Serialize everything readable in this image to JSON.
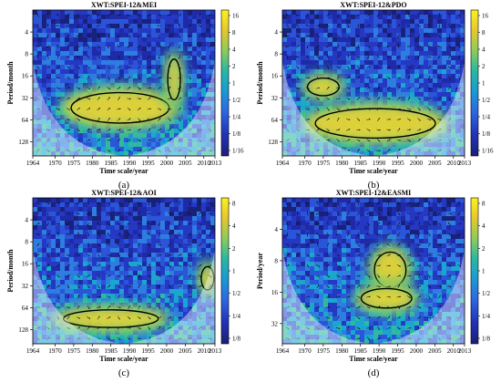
{
  "chart_data": [
    {
      "type": "heatmap",
      "panel_letter": "(a)",
      "title": "XWT:SPEI-12&MEI",
      "xlabel": "Time scale/year",
      "ylabel": "Period/month",
      "x_ticks": [
        "1964",
        "1970",
        "1975",
        "1980",
        "1985",
        "1990",
        "1995",
        "2000",
        "2005",
        "2010",
        "2013"
      ],
      "y_ticks": [
        "4",
        "8",
        "16",
        "32",
        "64",
        "128"
      ],
      "colorbar_ticks": [
        "16",
        "8",
        "4",
        "2",
        "1",
        "1/2",
        "1/4",
        "1/8",
        "1/16"
      ],
      "xlim": [
        1964,
        2013
      ],
      "ylim": [
        2,
        200
      ],
      "y_scale": "log2",
      "colors": {
        "low": "#18227a",
        "high": "#fbe22b"
      },
      "high_power_regions": [
        {
          "x": [
            1972,
            2003
          ],
          "period": [
            24,
            80
          ]
        },
        {
          "x": [
            2000,
            2004
          ],
          "period": [
            8,
            40
          ]
        }
      ]
    },
    {
      "type": "heatmap",
      "panel_letter": "(b)",
      "title": "XWT:SPEI-12&PDO",
      "xlabel": "Time scale/year",
      "ylabel": "Period/month",
      "x_ticks": [
        "1964",
        "1970",
        "1975",
        "1980",
        "1985",
        "1990",
        "1995",
        "2000",
        "2005",
        "2010",
        "2013"
      ],
      "y_ticks": [
        "4",
        "8",
        "16",
        "32",
        "64",
        "128"
      ],
      "colorbar_ticks": [
        "16",
        "8",
        "4",
        "2",
        "1",
        "1/2",
        "1/4",
        "1/8",
        "1/16"
      ],
      "xlim": [
        1964,
        2013
      ],
      "ylim": [
        2,
        200
      ],
      "y_scale": "log2",
      "colors": {
        "low": "#18227a",
        "high": "#fbe22b"
      },
      "high_power_regions": [
        {
          "x": [
            1970,
            2008
          ],
          "period": [
            40,
            128
          ]
        },
        {
          "x": [
            1970,
            1980
          ],
          "period": [
            16,
            32
          ]
        }
      ]
    },
    {
      "type": "heatmap",
      "panel_letter": "(c)",
      "title": "XWT:SPEI-12&AOI",
      "xlabel": "Time scale/year",
      "ylabel": "Period/month",
      "x_ticks": [
        "1964",
        "1970",
        "1975",
        "1980",
        "1985",
        "1990",
        "1995",
        "2000",
        "2005",
        "2010",
        "2013"
      ],
      "y_ticks": [
        "4",
        "8",
        "16",
        "32",
        "64",
        "128"
      ],
      "colorbar_ticks": [
        "8",
        "4",
        "2",
        "1",
        "1/2",
        "1/4",
        "1/8"
      ],
      "xlim": [
        1964,
        2013
      ],
      "ylim": [
        2,
        200
      ],
      "y_scale": "log2",
      "colors": {
        "low": "#18227a",
        "high": "#fbe22b"
      },
      "high_power_regions": [
        {
          "x": [
            1970,
            2000
          ],
          "period": [
            64,
            128
          ]
        },
        {
          "x": [
            2009,
            2013
          ],
          "period": [
            16,
            40
          ]
        }
      ]
    },
    {
      "type": "heatmap",
      "panel_letter": "(d)",
      "title": "XWT:SPEI-12&EASMI",
      "xlabel": "Time scale/year",
      "ylabel": "Period/year",
      "x_ticks": [
        "1964",
        "1970",
        "1975",
        "1980",
        "1985",
        "1990",
        "1995",
        "2000",
        "2005",
        "2010",
        "2013"
      ],
      "y_ticks": [
        "4",
        "8",
        "16",
        "32"
      ],
      "colorbar_ticks": [
        "8",
        "4",
        "2",
        "1",
        "1/2",
        "1/4",
        "1/8"
      ],
      "xlim": [
        1964,
        2013
      ],
      "ylim": [
        2,
        50
      ],
      "y_scale": "log2",
      "colors": {
        "low": "#18227a",
        "high": "#fbe22b"
      },
      "high_power_regions": [
        {
          "x": [
            1988,
            1998
          ],
          "period": [
            6,
            16
          ]
        },
        {
          "x": [
            1984,
            2000
          ],
          "period": [
            14,
            24
          ]
        }
      ]
    }
  ]
}
